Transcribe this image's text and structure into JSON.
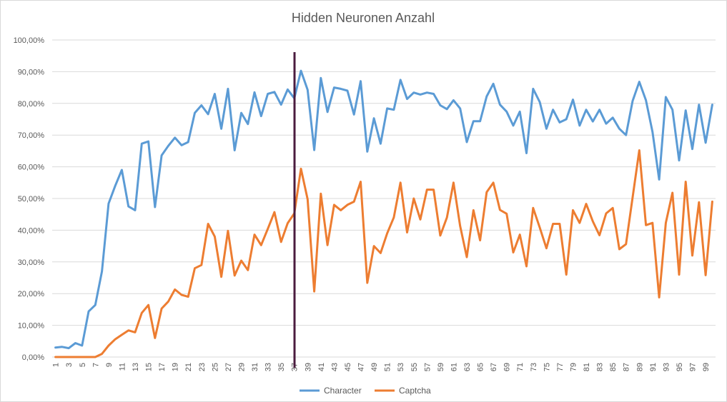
{
  "chart_data": {
    "type": "line",
    "title": "Hidden Neuronen Anzahl",
    "xlabel": "",
    "ylabel": "",
    "ylim": [
      0,
      100
    ],
    "y_ticks": [
      "0,00%",
      "10,00%",
      "20,00%",
      "30,00%",
      "40,00%",
      "50,00%",
      "60,00%",
      "70,00%",
      "80,00%",
      "90,00%",
      "100,00%"
    ],
    "x_tick_labels": [
      "1",
      "3",
      "5",
      "7",
      "9",
      "11",
      "13",
      "15",
      "17",
      "19",
      "21",
      "23",
      "25",
      "27",
      "29",
      "31",
      "33",
      "35",
      "37",
      "39",
      "41",
      "43",
      "45",
      "47",
      "49",
      "51",
      "53",
      "55",
      "57",
      "59",
      "61",
      "63",
      "65",
      "67",
      "69",
      "71",
      "73",
      "75",
      "77",
      "79",
      "81",
      "83",
      "85",
      "87",
      "89",
      "91",
      "93",
      "95",
      "97",
      "99"
    ],
    "grid": true,
    "legend_position": "bottom",
    "marker_line_x": 38,
    "colors": {
      "character": "#5b9bd5",
      "captcha": "#ed7d31",
      "marker": "#4b1c3f",
      "grid": "#d9d9d9"
    },
    "series": [
      {
        "name": "Character",
        "values": [
          3,
          3.2,
          2.8,
          4.4,
          3.6,
          14.4,
          16.4,
          27,
          48.4,
          54,
          59,
          47.5,
          46.3,
          67.3,
          68,
          47.3,
          63.6,
          66.6,
          69.2,
          66.8,
          67.8,
          77,
          79.4,
          76.6,
          83,
          72,
          84.6,
          65.2,
          77,
          73.5,
          83.5,
          76,
          83,
          83.6,
          79.6,
          84.4,
          81.6,
          90.3,
          84.3,
          65.3,
          88,
          77.3,
          85,
          84.6,
          84,
          76.5,
          87,
          64.8,
          75.3,
          67.3,
          78.4,
          78,
          87.4,
          81.4,
          83.4,
          82.8,
          83.4,
          83,
          79.4,
          78.2,
          81,
          78.4,
          67.8,
          74.4,
          74.4,
          82.2,
          86.2,
          79.6,
          77.4,
          73,
          77.4,
          64.3,
          84.6,
          80.4,
          72,
          78,
          74,
          75,
          81.2,
          73,
          78,
          74.3,
          78,
          73.6,
          75.5,
          72,
          70,
          80.8,
          86.8,
          81,
          71,
          56,
          82,
          78,
          62,
          77.8,
          65.6,
          79.6,
          67.6,
          79.6
        ]
      },
      {
        "name": "Captcha",
        "values": [
          0,
          0,
          0,
          0,
          0,
          0,
          0,
          1,
          3.6,
          5.6,
          7,
          8.4,
          7.8,
          13.9,
          16.4,
          6,
          15.3,
          17.5,
          21.3,
          19.6,
          19,
          28,
          29,
          42,
          38,
          25.3,
          39.8,
          25.7,
          30.4,
          27.4,
          38.6,
          35.3,
          40.4,
          45.7,
          36.3,
          42.2,
          45.3,
          59.4,
          49.8,
          20.7,
          51.5,
          35.3,
          48,
          46.3,
          48,
          49,
          55.3,
          23.4,
          35,
          32.8,
          39,
          44,
          55,
          39.3,
          50,
          43.4,
          52.8,
          52.8,
          38.3,
          44,
          55,
          41.3,
          31.5,
          46.3,
          36.8,
          52,
          55,
          46.4,
          45.2,
          33,
          38.6,
          28.6,
          47,
          40.8,
          34.3,
          42,
          42,
          26,
          46.3,
          42.3,
          48.3,
          42.8,
          38.4,
          45.3,
          47,
          34,
          35.6,
          50.4,
          65.2,
          41.6,
          42.3,
          18.8,
          42.3,
          51.8,
          26,
          55.3,
          32,
          48.8,
          25.8,
          49
        ]
      }
    ]
  }
}
